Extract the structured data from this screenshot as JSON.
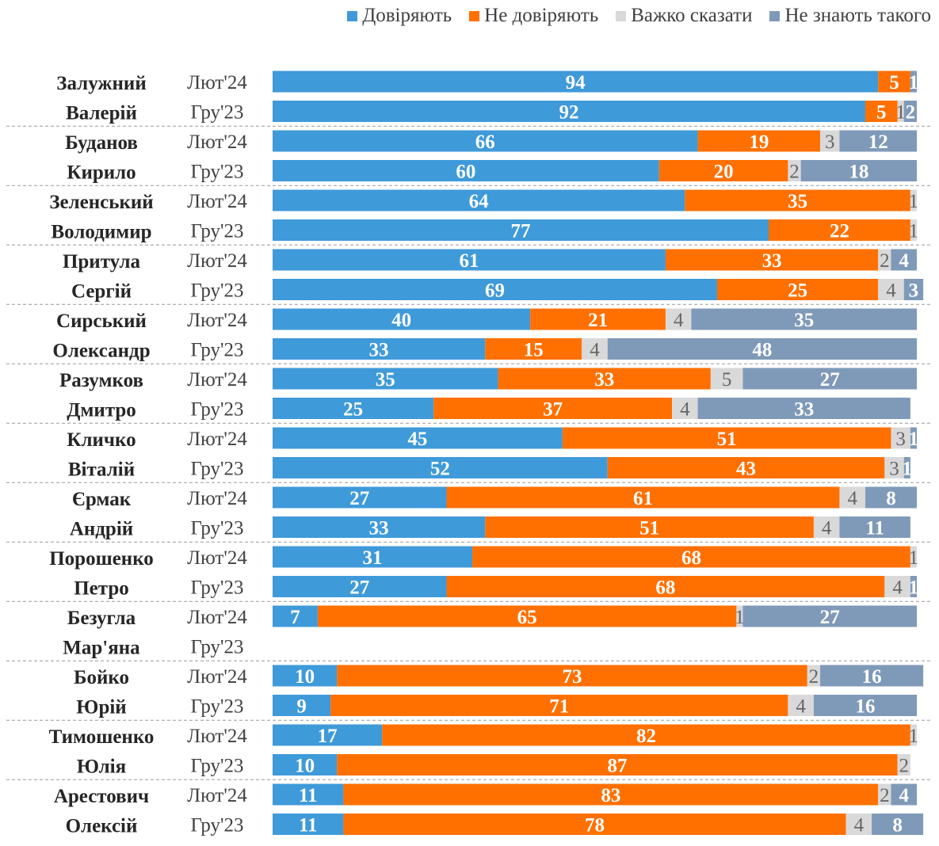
{
  "chart_data": {
    "type": "bar",
    "orientation": "horizontal",
    "stacked": true,
    "xlim": [
      0,
      100
    ],
    "legend_position": "top-right",
    "series": [
      {
        "name": "Довіряють",
        "color": "#3f9ad9"
      },
      {
        "name": "Не довіряють",
        "color": "#ff7000"
      },
      {
        "name": "Важко сказати",
        "color": "#d9d9d9"
      },
      {
        "name": "Не знають такого",
        "color": "#7f9ab8"
      }
    ],
    "groups": [
      {
        "name": [
          "Залужний",
          "Валерій"
        ],
        "rows": [
          {
            "period": "Лют'24",
            "values": [
              94,
              5,
              0,
              1
            ]
          },
          {
            "period": "Гру'23",
            "values": [
              92,
              5,
              1,
              2
            ]
          }
        ]
      },
      {
        "name": [
          "Буданов",
          "Кирило"
        ],
        "rows": [
          {
            "period": "Лют'24",
            "values": [
              66,
              19,
              3,
              12
            ]
          },
          {
            "period": "Гру'23",
            "values": [
              60,
              20,
              2,
              18
            ]
          }
        ]
      },
      {
        "name": [
          "Зеленський",
          "Володимир"
        ],
        "rows": [
          {
            "period": "Лют'24",
            "values": [
              64,
              35,
              1,
              0
            ]
          },
          {
            "period": "Гру'23",
            "values": [
              77,
              22,
              1,
              0
            ]
          }
        ]
      },
      {
        "name": [
          "Притула",
          "Сергій"
        ],
        "rows": [
          {
            "period": "Лют'24",
            "values": [
              61,
              33,
              2,
              4
            ]
          },
          {
            "period": "Гру'23",
            "values": [
              69,
              25,
              4,
              3
            ]
          }
        ]
      },
      {
        "name": [
          "Сирський",
          "Олександр"
        ],
        "rows": [
          {
            "period": "Лют'24",
            "values": [
              40,
              21,
              4,
              35
            ]
          },
          {
            "period": "Гру'23",
            "values": [
              33,
              15,
              4,
              48
            ]
          }
        ]
      },
      {
        "name": [
          "Разумков",
          "Дмитро"
        ],
        "rows": [
          {
            "period": "Лют'24",
            "values": [
              35,
              33,
              5,
              27
            ]
          },
          {
            "period": "Гру'23",
            "values": [
              25,
              37,
              4,
              33
            ]
          }
        ]
      },
      {
        "name": [
          "Кличко",
          "Віталій"
        ],
        "rows": [
          {
            "period": "Лют'24",
            "values": [
              45,
              51,
              3,
              1
            ]
          },
          {
            "period": "Гру'23",
            "values": [
              52,
              43,
              3,
              1
            ]
          }
        ]
      },
      {
        "name": [
          "Єрмак",
          "Андрій"
        ],
        "rows": [
          {
            "period": "Лют'24",
            "values": [
              27,
              61,
              4,
              8
            ]
          },
          {
            "period": "Гру'23",
            "values": [
              33,
              51,
              4,
              11
            ]
          }
        ]
      },
      {
        "name": [
          "Порошенко",
          "Петро"
        ],
        "rows": [
          {
            "period": "Лют'24",
            "values": [
              31,
              68,
              1,
              0
            ]
          },
          {
            "period": "Гру'23",
            "values": [
              27,
              68,
              4,
              1
            ]
          }
        ]
      },
      {
        "name": [
          "Безугла",
          "Мар'яна"
        ],
        "rows": [
          {
            "period": "Лют'24",
            "values": [
              7,
              65,
              1,
              27
            ]
          },
          {
            "period": "Гру'23",
            "values": null
          }
        ]
      },
      {
        "name": [
          "Бойко",
          "Юрій"
        ],
        "rows": [
          {
            "period": "Лют'24",
            "values": [
              10,
              73,
              2,
              16
            ]
          },
          {
            "period": "Гру'23",
            "values": [
              9,
              71,
              4,
              16
            ]
          }
        ]
      },
      {
        "name": [
          "Тимошенко",
          "Юлія"
        ],
        "rows": [
          {
            "period": "Лют'24",
            "values": [
              17,
              82,
              1,
              0
            ]
          },
          {
            "period": "Гру'23",
            "values": [
              10,
              87,
              2,
              0
            ]
          }
        ]
      },
      {
        "name": [
          "Арестович",
          "Олексій"
        ],
        "rows": [
          {
            "period": "Лют'24",
            "values": [
              11,
              83,
              2,
              4
            ]
          },
          {
            "period": "Гру'23",
            "values": [
              11,
              78,
              4,
              8
            ]
          }
        ]
      }
    ]
  }
}
